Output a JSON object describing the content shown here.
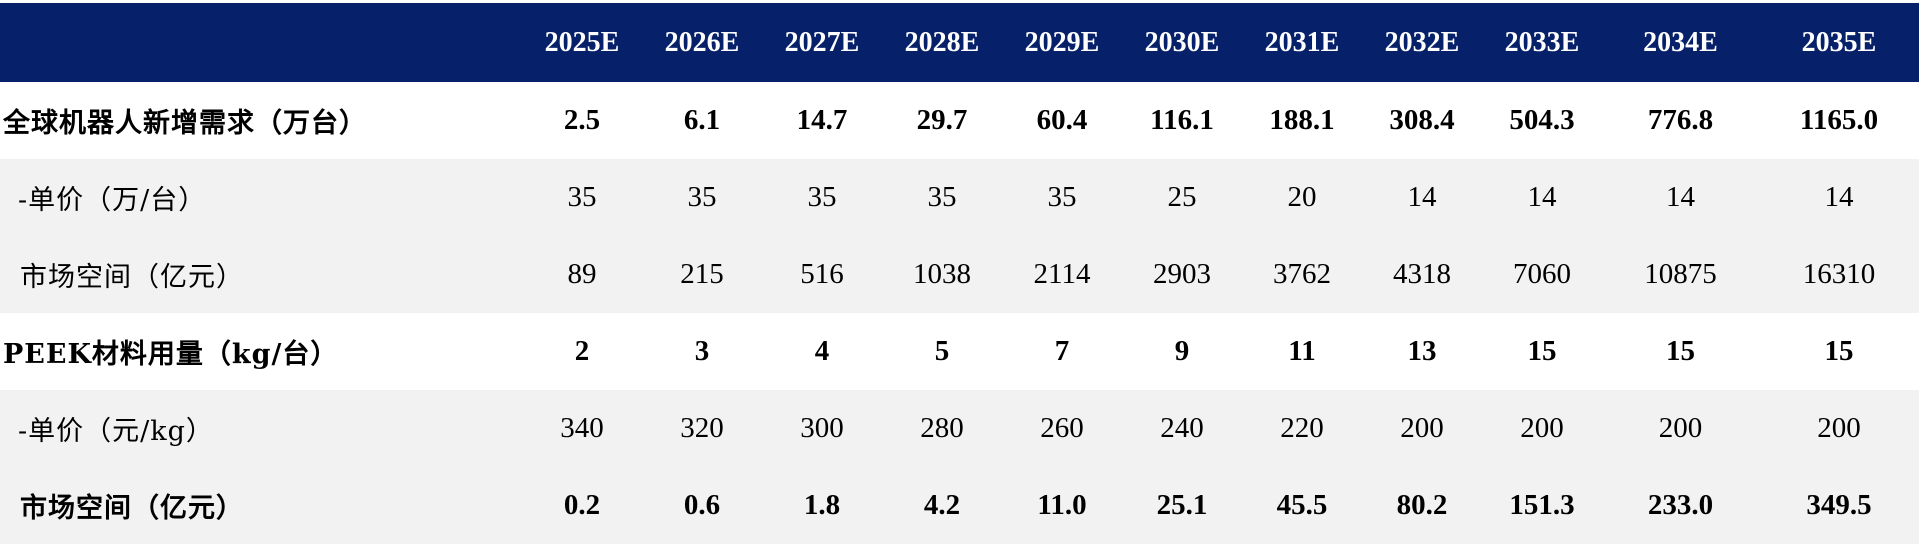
{
  "colors": {
    "header_bg": "#06216a",
    "header_text": "#ffffff",
    "band_white": "#ffffff",
    "band_gray": "#f2f2f2"
  },
  "header": {
    "corner": "",
    "years": [
      "2025E",
      "2026E",
      "2027E",
      "2028E",
      "2029E",
      "2030E",
      "2031E",
      "2032E",
      "2033E",
      "2034E",
      "2035E"
    ]
  },
  "rows": [
    {
      "label": "全球机器人新增需求（万台）",
      "values": [
        "2.5",
        "6.1",
        "14.7",
        "29.7",
        "60.4",
        "116.1",
        "188.1",
        "308.4",
        "504.3",
        "776.8",
        "1165.0"
      ]
    },
    {
      "label": "-单价（万/台）",
      "values": [
        "35",
        "35",
        "35",
        "35",
        "35",
        "25",
        "20",
        "14",
        "14",
        "14",
        "14"
      ]
    },
    {
      "label": "市场空间（亿元）",
      "values": [
        "89",
        "215",
        "516",
        "1038",
        "2114",
        "2903",
        "3762",
        "4318",
        "7060",
        "10875",
        "16310"
      ]
    },
    {
      "label": "PEEK材料用量（kg/台）",
      "values": [
        "2",
        "3",
        "4",
        "5",
        "7",
        "9",
        "11",
        "13",
        "15",
        "15",
        "15"
      ]
    },
    {
      "label": "-单价（元/kg）",
      "values": [
        "340",
        "320",
        "300",
        "280",
        "260",
        "240",
        "220",
        "200",
        "200",
        "200",
        "200"
      ]
    },
    {
      "label": "市场空间（亿元）",
      "values": [
        "0.2",
        "0.6",
        "1.8",
        "4.2",
        "11.0",
        "25.1",
        "45.5",
        "80.2",
        "151.3",
        "233.0",
        "349.5"
      ]
    }
  ]
}
